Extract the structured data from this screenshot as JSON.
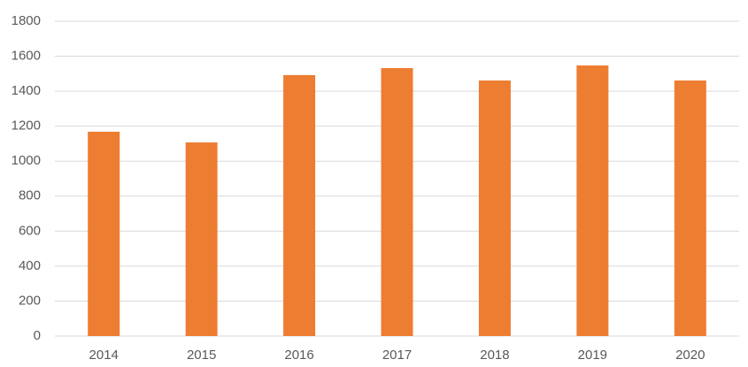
{
  "chart_data": {
    "type": "bar",
    "categories": [
      "2014",
      "2015",
      "2016",
      "2017",
      "2018",
      "2019",
      "2020"
    ],
    "values": [
      1168,
      1107,
      1492,
      1532,
      1461,
      1547,
      1461
    ],
    "color": "#ed7d31",
    "ylim": [
      0,
      1800
    ],
    "yticks": [
      0,
      200,
      400,
      600,
      800,
      1000,
      1200,
      1400,
      1600,
      1800
    ],
    "grid": true
  }
}
